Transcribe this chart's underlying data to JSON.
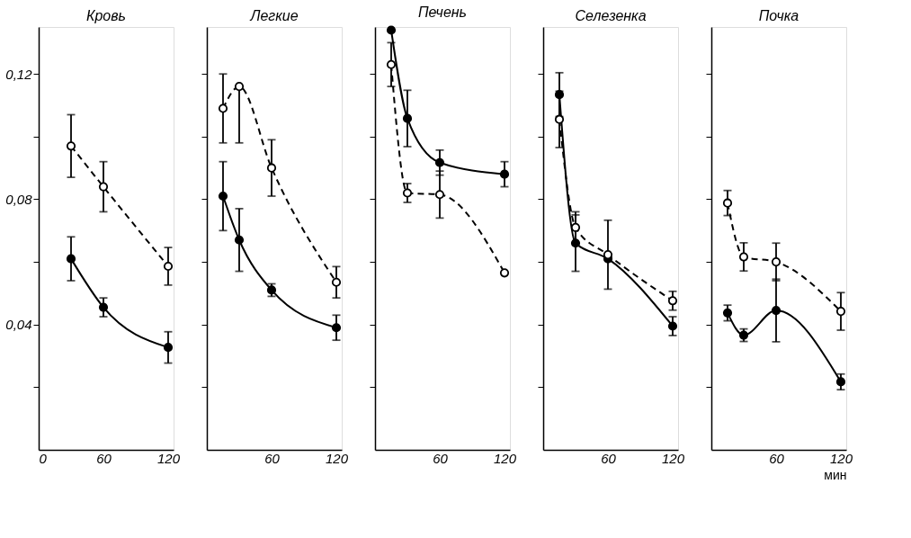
{
  "chart_data": [
    {
      "type": "line",
      "title": "Кровь",
      "x": [
        30,
        60,
        120
      ],
      "xlim": [
        0,
        125
      ],
      "xticks": [
        0,
        60,
        120
      ],
      "ylim": [
        0,
        0.135
      ],
      "yticks": [
        {
          "value": 0.02,
          "label": null
        },
        {
          "value": 0.04,
          "label": "0,04"
        },
        {
          "value": 0.06,
          "label": null
        },
        {
          "value": 0.08,
          "label": "0,08"
        },
        {
          "value": 0.1,
          "label": null
        },
        {
          "value": 0.12,
          "label": "0,12"
        }
      ],
      "marker": "circle",
      "series": [
        {
          "color": "#000000",
          "line_style": "dashed",
          "values": [
            0.097,
            0.084,
            0.0586
          ],
          "errors": [
            0.01,
            0.008,
            0.006
          ]
        },
        {
          "color": "#000000",
          "line_style": "solid",
          "values": [
            0.061,
            0.0455,
            0.0327
          ],
          "errors": [
            0.007,
            0.003,
            0.005
          ]
        }
      ]
    },
    {
      "type": "line",
      "title": "Легкие",
      "x": [
        15,
        30,
        60,
        120
      ],
      "xlim": [
        0,
        125
      ],
      "xticks": [
        60,
        120
      ],
      "ylim": [
        0,
        0.135
      ],
      "yticks": [
        {
          "value": 0.02,
          "label": null
        },
        {
          "value": 0.04,
          "label": null
        },
        {
          "value": 0.06,
          "label": null
        },
        {
          "value": 0.08,
          "label": null
        },
        {
          "value": 0.1,
          "label": null
        },
        {
          "value": 0.12,
          "label": null
        }
      ],
      "tick_labels": "x",
      "marker": "circle",
      "series": [
        {
          "color": "#000000",
          "line_style": "dashed",
          "values": [
            0.109,
            0.116,
            0.09,
            0.0535
          ],
          "errors": [
            0.011,
            [
              0.098,
              0.116
            ],
            0.009,
            0.005
          ]
        },
        {
          "color": "#000000",
          "line_style": "solid",
          "values": [
            0.081,
            0.067,
            0.051,
            0.039
          ],
          "errors": [
            0.011,
            0.01,
            0.002,
            0.004
          ]
        }
      ]
    },
    {
      "type": "line",
      "title": "Печень",
      "x": [
        15,
        30,
        60,
        120
      ],
      "xlim": [
        0,
        125
      ],
      "xticks": [
        60,
        120
      ],
      "ylim": [
        0,
        0.135
      ],
      "yticks": [
        {
          "value": 0.02,
          "label": null
        },
        {
          "value": 0.04,
          "label": null
        },
        {
          "value": 0.06,
          "label": null
        },
        {
          "value": 0.08,
          "label": null
        },
        {
          "value": 0.1,
          "label": null
        },
        {
          "value": 0.12,
          "label": null
        }
      ],
      "tick_labels": "x",
      "marker": "circle",
      "series": [
        {
          "color": "#000000",
          "line_style": "dashed",
          "values": [
            0.123,
            0.082,
            0.0815,
            0.0565
          ],
          "errors": [
            0.007,
            0.003,
            0.0075,
            null
          ]
        },
        {
          "color": "#000000",
          "line_style": "solid",
          "values": [
            0.134,
            0.1058,
            0.0917,
            0.088
          ],
          "errors": [
            null,
            0.009,
            0.004,
            0.004
          ]
        }
      ]
    },
    {
      "type": "line",
      "title": "Селезенка",
      "x": [
        15,
        30,
        60,
        120
      ],
      "xlim": [
        0,
        125
      ],
      "xticks": [
        60,
        120
      ],
      "ylim": [
        0,
        0.135
      ],
      "yticks": [
        {
          "value": 0.02,
          "label": null
        },
        {
          "value": 0.04,
          "label": null
        },
        {
          "value": 0.06,
          "label": null
        },
        {
          "value": 0.08,
          "label": null
        },
        {
          "value": 0.1,
          "label": null
        },
        {
          "value": 0.12,
          "label": null
        }
      ],
      "tick_labels": "x",
      "marker": "circle",
      "series": [
        {
          "color": "#000000",
          "line_style": "solid",
          "values": [
            0.1134,
            0.066,
            0.061,
            0.0395
          ],
          "errors": [
            0.007,
            0.009,
            null,
            0.003
          ]
        },
        {
          "color": "#000000",
          "line_style": "dashed",
          "values": [
            0.1055,
            0.071,
            0.0623,
            0.0476
          ],
          "errors": [
            0.009,
            0.005,
            0.011,
            0.003
          ]
        }
      ]
    },
    {
      "type": "line",
      "title": "Почка",
      "xlabel": "мин",
      "x": [
        15,
        30,
        60,
        120
      ],
      "xlim": [
        0,
        125
      ],
      "xticks": [
        60,
        120
      ],
      "ylim": [
        0,
        0.135
      ],
      "yticks": [
        {
          "value": 0.02,
          "label": null
        },
        {
          "value": 0.04,
          "label": null
        },
        {
          "value": 0.06,
          "label": null
        },
        {
          "value": 0.08,
          "label": null
        },
        {
          "value": 0.1,
          "label": null
        },
        {
          "value": 0.12,
          "label": null
        }
      ],
      "tick_labels": "x",
      "marker": "circle",
      "series": [
        {
          "color": "#000000",
          "line_style": "dashed",
          "values": [
            0.0788,
            0.0616,
            0.06,
            0.0442
          ],
          "errors": [
            0.004,
            0.0045,
            0.006,
            0.006
          ]
        },
        {
          "color": "#000000",
          "line_style": "solid",
          "values": [
            0.0437,
            0.0366,
            0.0445,
            0.0217
          ],
          "errors": [
            0.0025,
            0.002,
            0.01,
            0.0025
          ]
        }
      ]
    }
  ]
}
